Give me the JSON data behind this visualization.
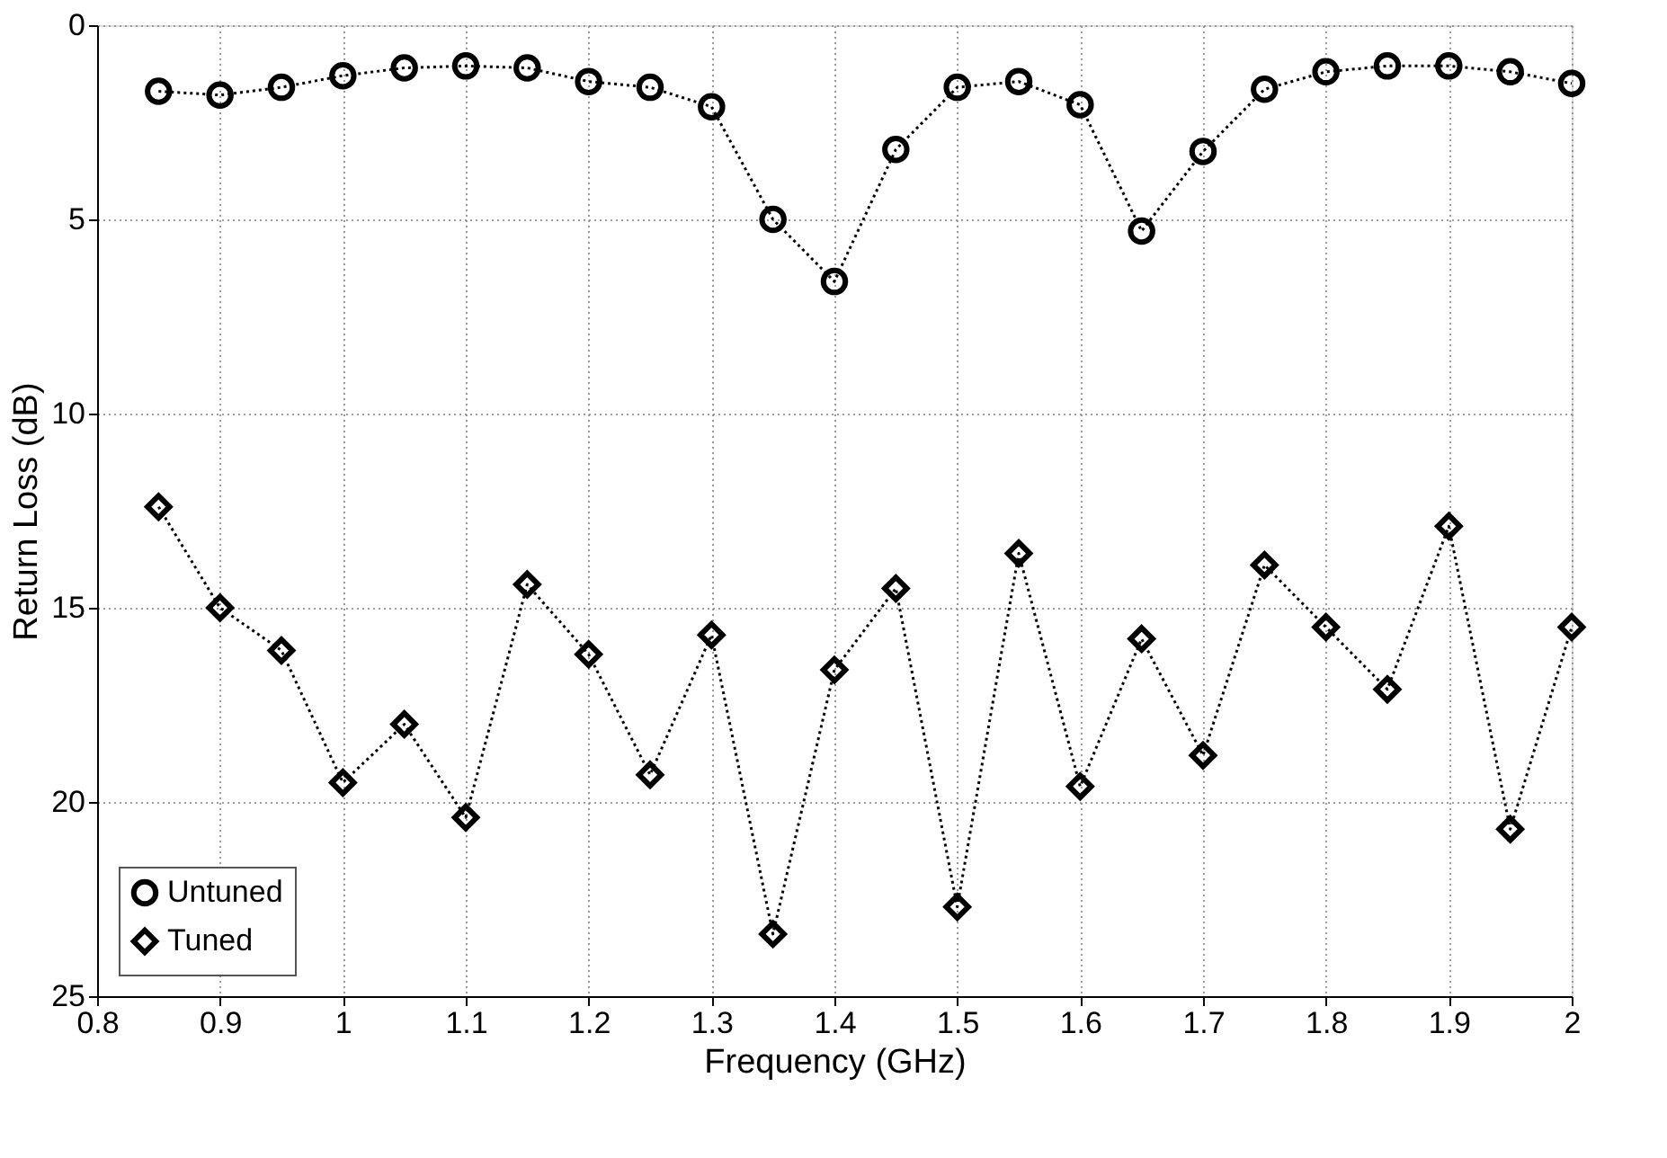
{
  "chart_data": {
    "type": "line",
    "xlabel": "Frequency (GHz)",
    "ylabel": "Return Loss (dB)",
    "x": [
      0.85,
      0.9,
      0.95,
      1.0,
      1.05,
      1.1,
      1.15,
      1.2,
      1.25,
      1.3,
      1.35,
      1.4,
      1.45,
      1.5,
      1.55,
      1.6,
      1.65,
      1.7,
      1.75,
      1.8,
      1.85,
      1.9,
      1.95,
      2.0
    ],
    "series": [
      {
        "name": "Untuned",
        "color": "#000000",
        "marker": "circle",
        "values": [
          1.7,
          1.8,
          1.6,
          1.3,
          1.1,
          1.05,
          1.1,
          1.45,
          1.6,
          2.1,
          5.0,
          6.6,
          3.2,
          1.6,
          1.45,
          2.05,
          5.3,
          3.25,
          1.65,
          1.2,
          1.05,
          1.05,
          1.2,
          1.5
        ]
      },
      {
        "name": "Tuned",
        "color": "#000000",
        "marker": "diamond",
        "values": [
          12.4,
          15.0,
          16.1,
          19.5,
          18.0,
          20.4,
          14.4,
          16.2,
          19.3,
          15.7,
          23.4,
          16.6,
          14.5,
          22.7,
          13.6,
          19.6,
          15.8,
          18.8,
          13.9,
          15.5,
          17.1,
          12.9,
          20.7,
          15.5
        ]
      }
    ],
    "xlim": [
      0.8,
      2.0
    ],
    "xticks": [
      0.8,
      0.9,
      1,
      1.1,
      1.2,
      1.3,
      1.4,
      1.5,
      1.6,
      1.7,
      1.8,
      1.9,
      2
    ],
    "ylim": [
      25,
      0
    ],
    "yticks": [
      0,
      5,
      10,
      15,
      20,
      25
    ],
    "grid": true,
    "legend": "bottom left",
    "line_style": "dotted"
  }
}
